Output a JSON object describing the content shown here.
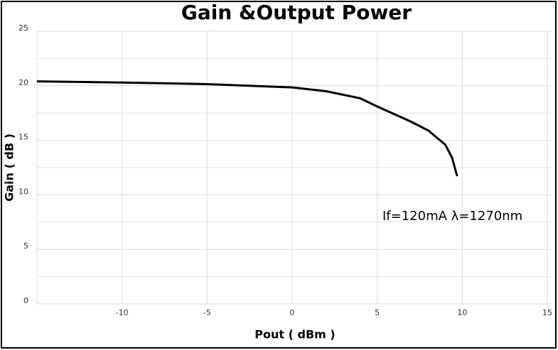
{
  "chart_data": {
    "type": "line",
    "title": "Gain &Output Power",
    "xlabel": "Pout ( dBm )",
    "ylabel": "Gain ( dB )",
    "annotation": "If=120mA   λ=1270nm",
    "x": [
      -15,
      -10,
      -5,
      0,
      2,
      4,
      5,
      6,
      7,
      8,
      9,
      9.4,
      9.7
    ],
    "series": [
      {
        "name": "Gain",
        "color": "#000000",
        "values": [
          20.4,
          20.3,
          20.15,
          19.85,
          19.5,
          18.85,
          18.1,
          17.4,
          16.7,
          15.9,
          14.6,
          13.4,
          11.7
        ]
      }
    ],
    "xlim": [
      -15,
      15
    ],
    "ylim": [
      0,
      25
    ],
    "xticks": [
      -10,
      -5,
      0,
      5,
      10,
      15
    ],
    "yticks": [
      0,
      5,
      10,
      15,
      20,
      25
    ],
    "y_minor_grid": [
      2.5,
      7.5,
      12.5,
      17.5,
      22.5
    ],
    "grid": true
  }
}
